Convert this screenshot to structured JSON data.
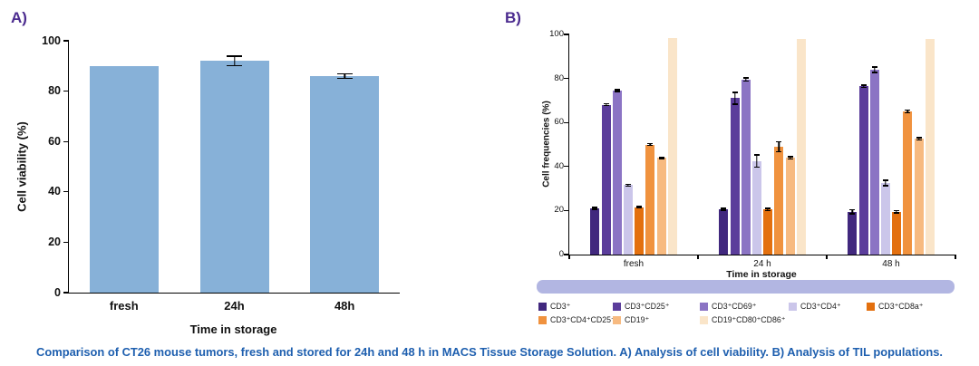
{
  "panelA": {
    "label": "A)"
  },
  "panelB": {
    "label": "B)"
  },
  "caption": {
    "text": "Comparison of CT26 mouse tumors, fresh and stored for 24h and 48 h in MACS Tissue Storage Solution. A) Analysis of cell viability. B) Analysis of TIL populations."
  },
  "colors": {
    "panel_label": "#4B2B8F",
    "caption": "#1E5FAF",
    "axis": "#000000",
    "decor_bar": "#B2B6E2",
    "viability_bar": "#87B1D8"
  },
  "chart_data": [
    {
      "type": "bar",
      "title": "",
      "xlabel": "Time in storage",
      "ylabel": "Cell viability (%)",
      "ylim": [
        0,
        100
      ],
      "yticks": [
        0,
        20,
        40,
        60,
        80,
        100
      ],
      "grid": false,
      "categories": [
        "fresh",
        "24h",
        "48h"
      ],
      "bar_color": "#87B1D8",
      "values": [
        90,
        92,
        86
      ],
      "errors": [
        0,
        2.2,
        1.1
      ]
    },
    {
      "type": "bar",
      "title": "",
      "xlabel": "Time in storage",
      "ylabel": "Cell frequencies (%)",
      "ylim": [
        0,
        100
      ],
      "yticks": [
        0,
        20,
        40,
        60,
        80,
        100
      ],
      "grid": false,
      "legend_position": "bottom",
      "categories": [
        "fresh",
        "24 h",
        "48 h"
      ],
      "series": [
        {
          "name": "CD3⁺",
          "color": "#41287E",
          "values": [
            21,
            20.5,
            19.5
          ],
          "errors": [
            0.7,
            0.7,
            1.2
          ]
        },
        {
          "name": "CD3⁺CD25⁺",
          "color": "#5B3D9B",
          "values": [
            68,
            71,
            76.5
          ],
          "errors": [
            0.7,
            3.0,
            0.8
          ]
        },
        {
          "name": "CD3⁺CD69⁺",
          "color": "#8B74C4",
          "values": [
            74.5,
            79.5,
            84
          ],
          "errors": [
            0.7,
            1.0,
            1.5
          ]
        },
        {
          "name": "CD3⁺CD4⁺",
          "color": "#CBC6EA",
          "values": [
            31.5,
            42.5,
            32.5
          ],
          "errors": [
            0.7,
            3.0,
            1.5
          ]
        },
        {
          "name": "CD3⁺CD8a⁺",
          "color": "#E3700F",
          "values": [
            21.5,
            20.5,
            19.5
          ],
          "errors": [
            0.6,
            0.8,
            0.8
          ]
        },
        {
          "name": "CD3⁺CD4⁺CD25⁺",
          "color": "#F0923E",
          "values": [
            50,
            49,
            65
          ],
          "errors": [
            0.6,
            2.5,
            0.8
          ]
        },
        {
          "name": "CD19⁺",
          "color": "#F7BA80",
          "values": [
            44,
            44,
            52.5
          ],
          "errors": [
            0.6,
            0.8,
            0.8
          ]
        },
        {
          "name": "CD19⁺CD80⁺CD86⁺",
          "color": "#FAE5C9",
          "values": [
            98.5,
            98,
            98
          ],
          "errors": [
            0,
            0,
            0
          ]
        }
      ]
    }
  ]
}
